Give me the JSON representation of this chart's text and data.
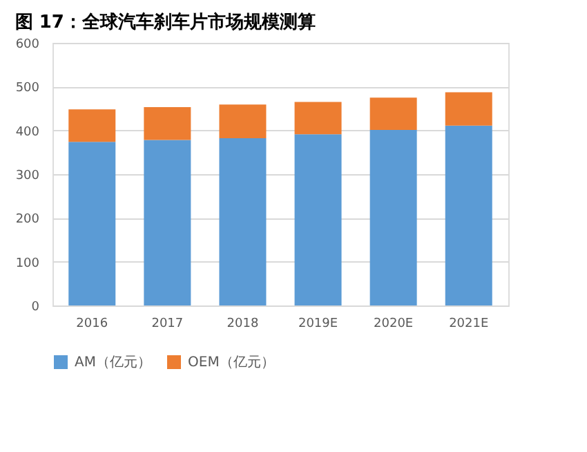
{
  "chart_data": {
    "type": "bar",
    "title": "图 17：全球汽车刹车片市场规模测算",
    "stacked": true,
    "categories": [
      "2016",
      "2017",
      "2018",
      "2019E",
      "2020E",
      "2021E"
    ],
    "series": [
      {
        "name": "AM（亿元）",
        "color": "#5b9bd5",
        "values": [
          374,
          378,
          382,
          391,
          401,
          411
        ]
      },
      {
        "name": "OEM（亿元）",
        "color": "#ed7d31",
        "values": [
          74,
          75,
          77,
          74,
          74,
          76
        ]
      }
    ],
    "ylim": [
      0,
      600
    ],
    "yticks": [
      0,
      100,
      200,
      300,
      400,
      500,
      600
    ],
    "grid": "y",
    "legend": "bottom"
  }
}
